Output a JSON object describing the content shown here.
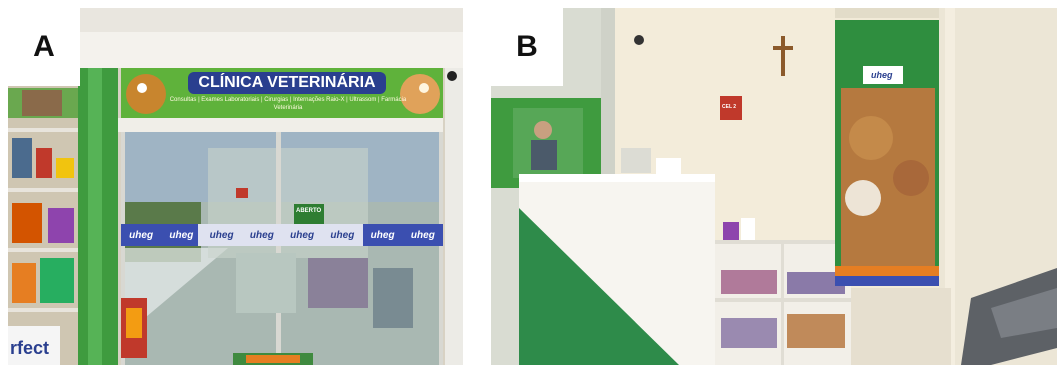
{
  "panels": [
    {
      "label": "A",
      "sign_title": "CLÍNICA VETERINÁRIA",
      "sign_subtitle": "Consultas | Exames Laboratoriais | Cirurgias | Internações Raio-X | Ultrassom | Farmácia Veterinária",
      "door_brand_labels": [
        "uheg",
        "uheg",
        "uheg",
        "uheg",
        "uheg",
        "uheg",
        "uheg",
        "uheg"
      ],
      "door_notice": "ABERTO",
      "bag_text": "rfect"
    },
    {
      "label": "B",
      "banner_brand": "uheg",
      "wall_sign": "CEL 2"
    }
  ]
}
